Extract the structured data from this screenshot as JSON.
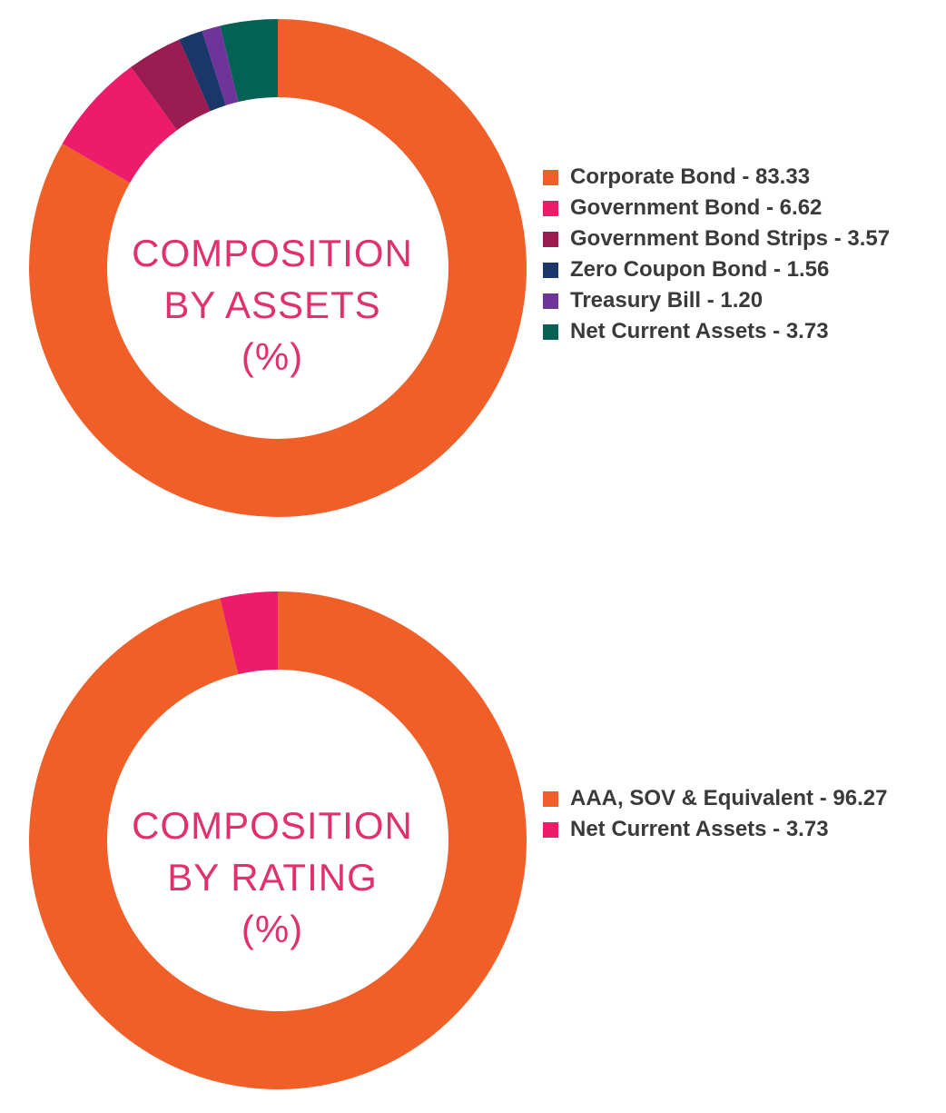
{
  "chart_data": [
    {
      "type": "pie",
      "subtype": "donut",
      "title_lines": [
        "COMPOSITION",
        "BY ASSETS",
        "(%)"
      ],
      "categories": [
        "Corporate Bond",
        "Government Bond",
        "Government Bond Strips",
        "Zero Coupon Bond",
        "Treasury Bill",
        "Net Current Assets"
      ],
      "values": [
        83.33,
        6.62,
        3.57,
        1.56,
        1.2,
        3.73
      ],
      "legend_labels": [
        "Corporate Bond - 83.33",
        "Government Bond - 6.62",
        "Government Bond Strips - 3.57",
        "Zero Coupon Bond - 1.56",
        "Treasury Bill - 1.20",
        "Net Current Assets - 3.73"
      ],
      "colors": [
        "#f15f29",
        "#ec1c6a",
        "#9a1c50",
        "#1b3668",
        "#6f3499",
        "#036254"
      ],
      "legend_position": "right"
    },
    {
      "type": "pie",
      "subtype": "donut",
      "title_lines": [
        "COMPOSITION",
        "BY RATING",
        "(%)"
      ],
      "categories": [
        "AAA, SOV & Equivalent",
        "Net Current Assets"
      ],
      "values": [
        96.27,
        3.73
      ],
      "legend_labels": [
        "AAA, SOV & Equivalent - 96.27",
        "Net Current Assets - 3.73"
      ],
      "colors": [
        "#f15f29",
        "#ec1c6a"
      ],
      "legend_position": "right"
    }
  ]
}
